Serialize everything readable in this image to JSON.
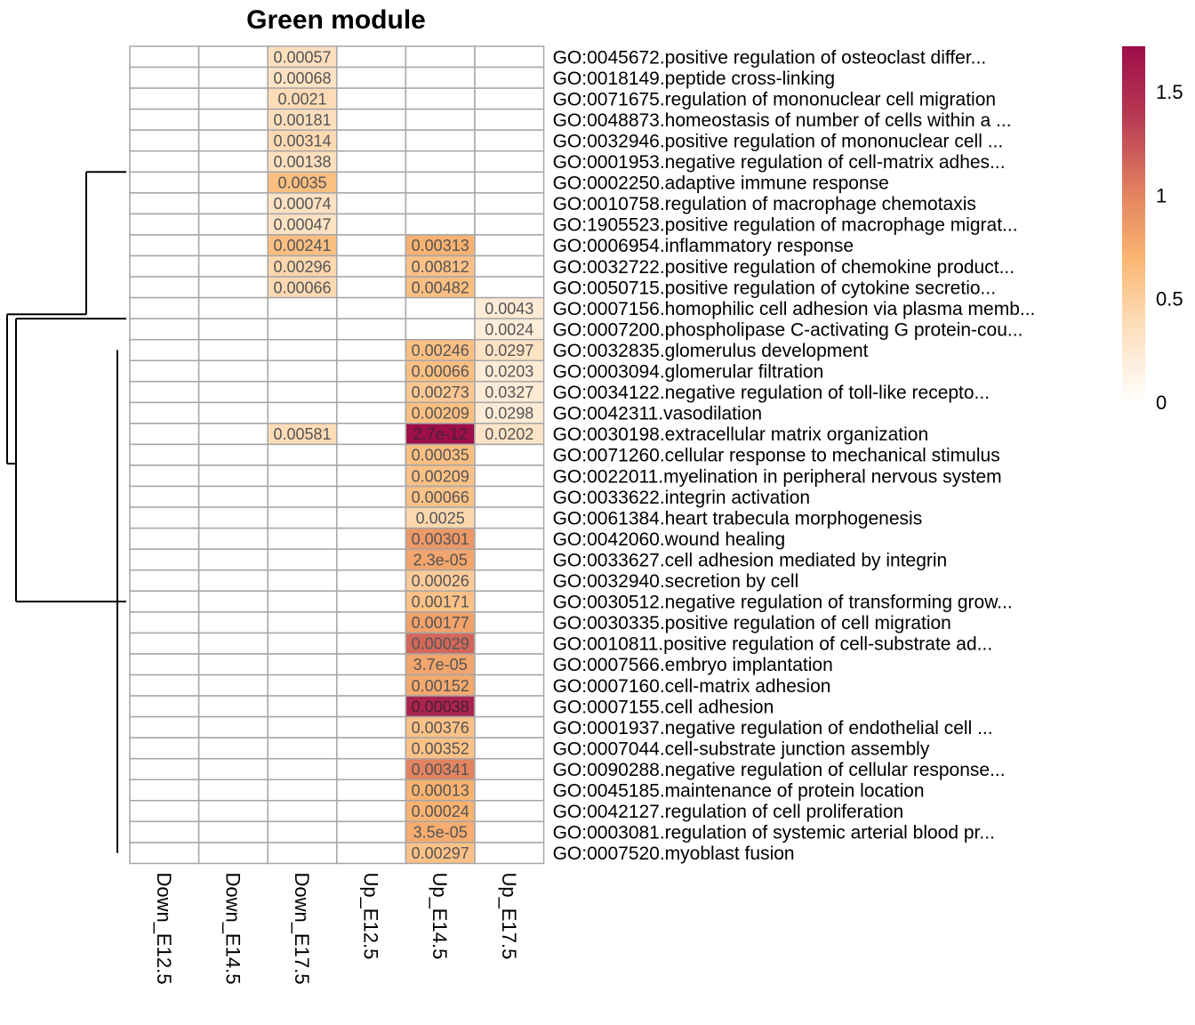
{
  "chart_data": {
    "type": "heatmap",
    "title": "Green module",
    "columns": [
      "Down_E12.5",
      "Down_E14.5",
      "Down_E17.5",
      "Up_E12.5",
      "Up_E14.5",
      "Up_E17.5"
    ],
    "rows": [
      "GO:0045672.positive regulation of osteoclast differ...",
      "GO:0018149.peptide cross-linking",
      "GO:0071675.regulation of mononuclear cell migration",
      "GO:0048873.homeostasis of number of cells within a ...",
      "GO:0032946.positive regulation of mononuclear cell ...",
      "GO:0001953.negative regulation of cell-matrix adhes...",
      "GO:0002250.adaptive immune response",
      "GO:0010758.regulation of macrophage chemotaxis",
      "GO:1905523.positive regulation of macrophage migrat...",
      "GO:0006954.inflammatory response",
      "GO:0032722.positive regulation of chemokine product...",
      "GO:0050715.positive regulation of cytokine secretio...",
      "GO:0007156.homophilic cell adhesion via plasma memb...",
      "GO:0007200.phospholipase C-activating G protein-cou...",
      "GO:0032835.glomerulus development",
      "GO:0003094.glomerular filtration",
      "GO:0034122.negative regulation of toll-like recepto...",
      "GO:0042311.vasodilation",
      "GO:0030198.extracellular matrix organization",
      "GO:0071260.cellular response to mechanical stimulus",
      "GO:0022011.myelination in peripheral nervous system",
      "GO:0033622.integrin activation",
      "GO:0061384.heart trabecula morphogenesis",
      "GO:0042060.wound healing",
      "GO:0033627.cell adhesion mediated by integrin",
      "GO:0032940.secretion by cell",
      "GO:0030512.negative regulation of transforming grow...",
      "GO:0030335.positive regulation of cell migration",
      "GO:0010811.positive regulation of cell-substrate ad...",
      "GO:0007566.embryo implantation",
      "GO:0007160.cell-matrix adhesion",
      "GO:0007155.cell adhesion",
      "GO:0001937.negative regulation of endothelial cell ...",
      "GO:0007044.cell-substrate junction assembly",
      "GO:0090288.negative regulation of cellular response...",
      "GO:0045185.maintenance of protein location",
      "GO:0042127.regulation of cell proliferation",
      "GO:0003081.regulation of systemic arterial blood pr...",
      "GO:0007520.myoblast fusion"
    ],
    "cells": [
      {
        "row": 0,
        "col": 2,
        "label": "0.00057",
        "value": 0.35
      },
      {
        "row": 1,
        "col": 2,
        "label": "0.00068",
        "value": 0.32
      },
      {
        "row": 2,
        "col": 2,
        "label": "0.0021",
        "value": 0.38
      },
      {
        "row": 3,
        "col": 2,
        "label": "0.00181",
        "value": 0.35
      },
      {
        "row": 4,
        "col": 2,
        "label": "0.00314",
        "value": 0.4
      },
      {
        "row": 5,
        "col": 2,
        "label": "0.00138",
        "value": 0.35
      },
      {
        "row": 6,
        "col": 2,
        "label": "0.0035",
        "value": 0.62
      },
      {
        "row": 7,
        "col": 2,
        "label": "0.00074",
        "value": 0.33
      },
      {
        "row": 8,
        "col": 2,
        "label": "0.00047",
        "value": 0.32
      },
      {
        "row": 9,
        "col": 2,
        "label": "0.00241",
        "value": 0.62
      },
      {
        "row": 9,
        "col": 4,
        "label": "0.00313",
        "value": 0.72
      },
      {
        "row": 10,
        "col": 2,
        "label": "0.00296",
        "value": 0.42
      },
      {
        "row": 10,
        "col": 4,
        "label": "0.00812",
        "value": 0.6
      },
      {
        "row": 11,
        "col": 2,
        "label": "0.00066",
        "value": 0.4
      },
      {
        "row": 11,
        "col": 4,
        "label": "0.00482",
        "value": 0.62
      },
      {
        "row": 12,
        "col": 5,
        "label": "0.0043",
        "value": 0.22
      },
      {
        "row": 13,
        "col": 5,
        "label": "0.0024",
        "value": 0.2
      },
      {
        "row": 14,
        "col": 4,
        "label": "0.00246",
        "value": 0.62
      },
      {
        "row": 14,
        "col": 5,
        "label": "0.0297",
        "value": 0.32
      },
      {
        "row": 15,
        "col": 4,
        "label": "0.00066",
        "value": 0.62
      },
      {
        "row": 15,
        "col": 5,
        "label": "0.0203",
        "value": 0.22
      },
      {
        "row": 16,
        "col": 4,
        "label": "0.00273",
        "value": 0.55
      },
      {
        "row": 16,
        "col": 5,
        "label": "0.0327",
        "value": 0.22
      },
      {
        "row": 17,
        "col": 4,
        "label": "0.00209",
        "value": 0.62
      },
      {
        "row": 17,
        "col": 5,
        "label": "0.0298",
        "value": 0.22
      },
      {
        "row": 18,
        "col": 2,
        "label": "0.00581",
        "value": 0.38
      },
      {
        "row": 18,
        "col": 4,
        "label": "2.7e-12",
        "value": 1.72
      },
      {
        "row": 18,
        "col": 5,
        "label": "0.0202",
        "value": 0.3
      },
      {
        "row": 19,
        "col": 4,
        "label": "0.00035",
        "value": 0.62
      },
      {
        "row": 20,
        "col": 4,
        "label": "0.00209",
        "value": 0.6
      },
      {
        "row": 21,
        "col": 4,
        "label": "0.00066",
        "value": 0.6
      },
      {
        "row": 22,
        "col": 4,
        "label": "0.0025",
        "value": 0.42
      },
      {
        "row": 23,
        "col": 4,
        "label": "0.00301",
        "value": 0.88
      },
      {
        "row": 24,
        "col": 4,
        "label": "2.3e-05",
        "value": 0.8
      },
      {
        "row": 25,
        "col": 4,
        "label": "0.00026",
        "value": 0.52
      },
      {
        "row": 26,
        "col": 4,
        "label": "0.00171",
        "value": 0.6
      },
      {
        "row": 27,
        "col": 4,
        "label": "0.00177",
        "value": 0.82
      },
      {
        "row": 28,
        "col": 4,
        "label": "0.00029",
        "value": 1.15
      },
      {
        "row": 29,
        "col": 4,
        "label": "3.7e-05",
        "value": 0.8
      },
      {
        "row": 30,
        "col": 4,
        "label": "0.00152",
        "value": 0.78
      },
      {
        "row": 31,
        "col": 4,
        "label": "0.00038",
        "value": 1.55
      },
      {
        "row": 32,
        "col": 4,
        "label": "0.00376",
        "value": 0.6
      },
      {
        "row": 33,
        "col": 4,
        "label": "0.00352",
        "value": 0.6
      },
      {
        "row": 34,
        "col": 4,
        "label": "0.00341",
        "value": 1.0
      },
      {
        "row": 35,
        "col": 4,
        "label": "0.00013",
        "value": 0.72
      },
      {
        "row": 36,
        "col": 4,
        "label": "0.00024",
        "value": 0.72
      },
      {
        "row": 37,
        "col": 4,
        "label": "3.5e-05",
        "value": 0.75
      },
      {
        "row": 38,
        "col": 4,
        "label": "0.00297",
        "value": 0.6
      }
    ],
    "color_scale": {
      "range": [
        0,
        1.72
      ],
      "ticks": [
        "0",
        "0.5",
        "1",
        "1.5"
      ],
      "tick_values": [
        0,
        0.5,
        1,
        1.5
      ],
      "stops": [
        "#ffffff",
        "#fde0bf",
        "#fbb773",
        "#e07f5e",
        "#b83a52",
        "#9e0e4a"
      ]
    },
    "dendrogram": "row clustering tree on left"
  }
}
